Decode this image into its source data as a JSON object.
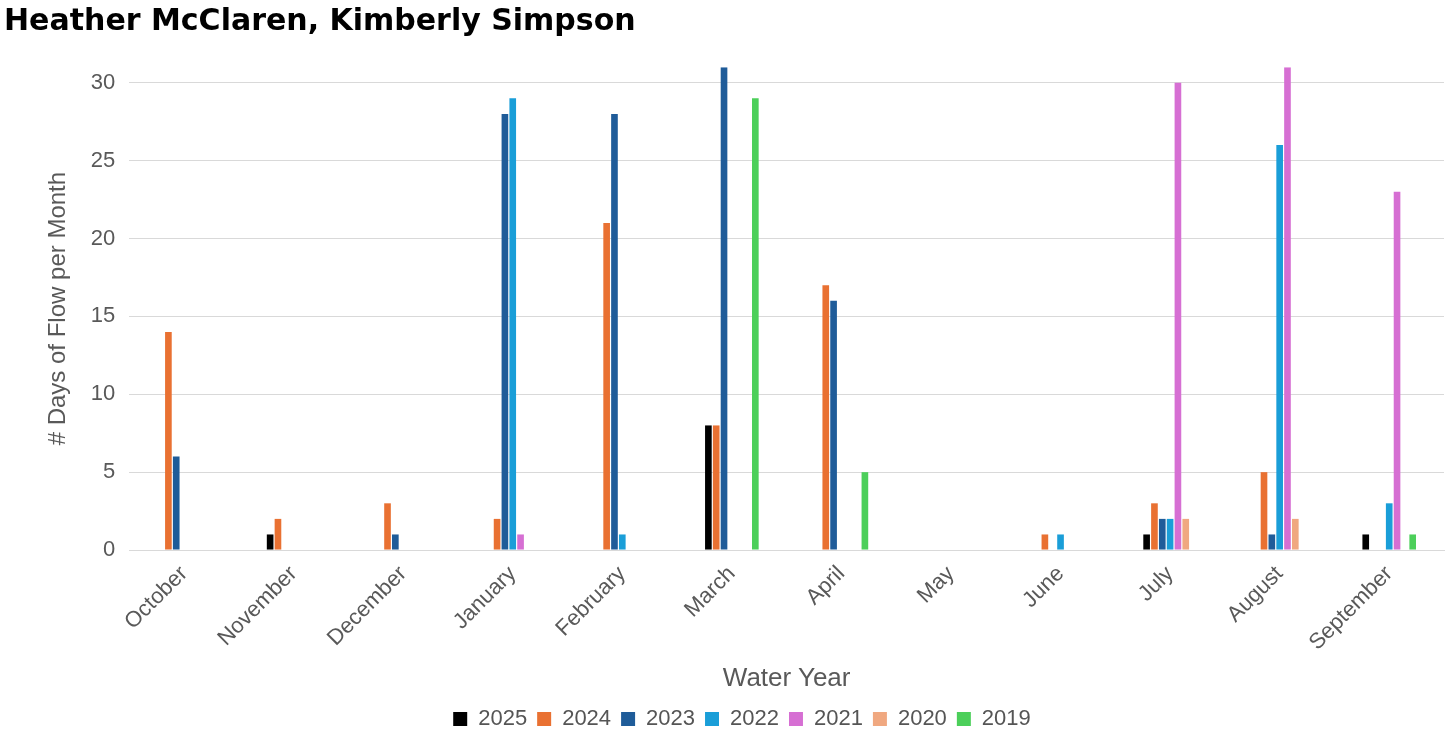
{
  "chart_data": {
    "type": "bar",
    "title": "Heather McClaren, Kimberly Simpson",
    "xlabel": "Water Year",
    "ylabel": "# Days of Flow per Month",
    "categories": [
      "October",
      "November",
      "December",
      "January",
      "February",
      "March",
      "April",
      "May",
      "June",
      "July",
      "August",
      "September"
    ],
    "series": [
      {
        "name": "2025",
        "color": "#000000",
        "values": [
          0,
          1,
          0,
          0,
          0,
          8,
          0,
          0,
          0,
          1,
          0,
          1
        ]
      },
      {
        "name": "2024",
        "color": "#e97132",
        "values": [
          14,
          2,
          3,
          2,
          21,
          8,
          17,
          0,
          1,
          3,
          5,
          0
        ]
      },
      {
        "name": "2023",
        "color": "#1f5c99",
        "values": [
          6,
          0,
          1,
          28,
          28,
          31,
          16,
          0,
          0,
          2,
          1,
          0
        ]
      },
      {
        "name": "2022",
        "color": "#1a9ed8",
        "values": [
          0,
          0,
          0,
          29,
          1,
          0,
          0,
          0,
          1,
          2,
          26,
          3
        ]
      },
      {
        "name": "2021",
        "color": "#d66fd3",
        "values": [
          0,
          0,
          0,
          1,
          0,
          0,
          0,
          0,
          0,
          30,
          31,
          23
        ]
      },
      {
        "name": "2020",
        "color": "#f0a880",
        "values": [
          0,
          0,
          0,
          0,
          0,
          0,
          0,
          0,
          0,
          2,
          2,
          0
        ]
      },
      {
        "name": "2019",
        "color": "#4ccf5a",
        "values": [
          0,
          0,
          0,
          0,
          0,
          29,
          5,
          0,
          0,
          0,
          0,
          1
        ]
      }
    ],
    "ylim": [
      0,
      31
    ],
    "yticks": [
      0,
      5,
      10,
      15,
      20,
      25,
      30
    ],
    "grid": "y",
    "legend": "bottom"
  }
}
